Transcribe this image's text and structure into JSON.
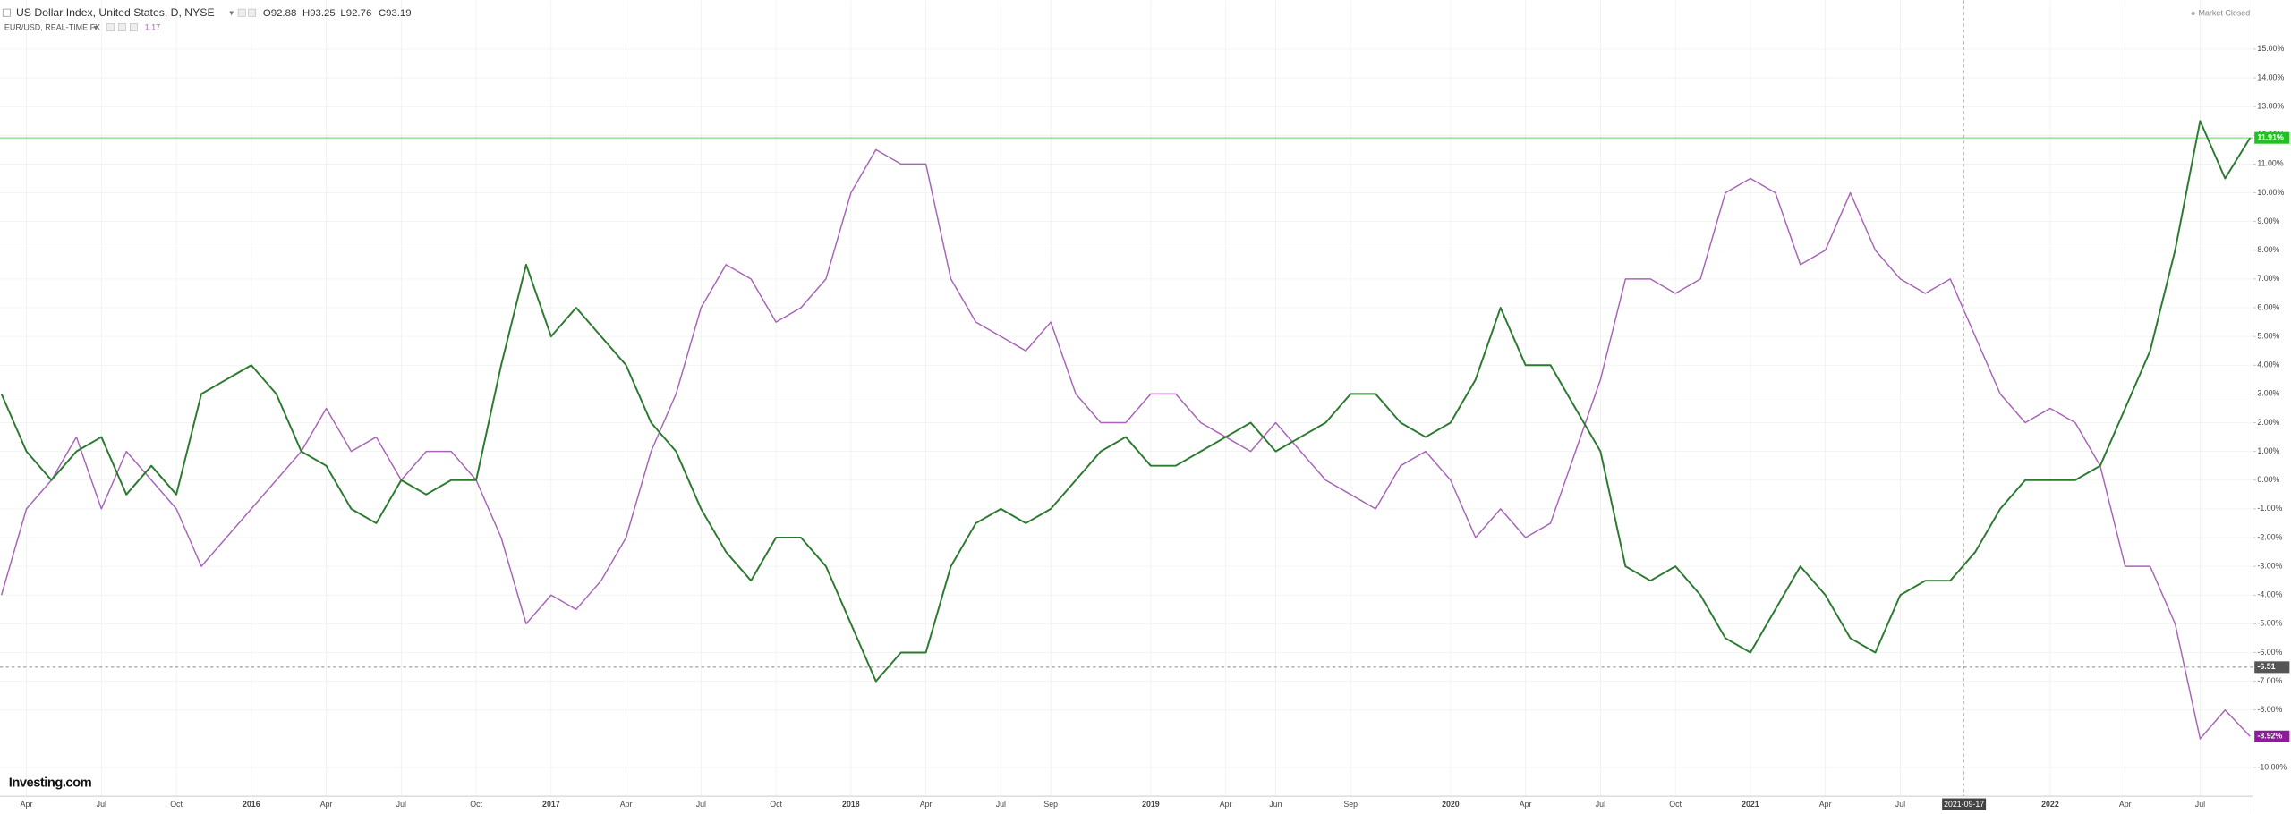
{
  "header": {
    "ohlc": [
      "O92.88",
      "H93.25",
      "L92.76",
      "C93.19"
    ],
    "second_value": "1.17",
    "status": "Market Closed",
    "logo": "Investing.com"
  },
  "chart_data": {
    "type": "line",
    "categories": [
      null,
      "Apr",
      null,
      null,
      "Jul",
      null,
      null,
      "Oct",
      null,
      null,
      "2016",
      null,
      null,
      "Apr",
      null,
      null,
      "Jul",
      null,
      null,
      "Oct",
      null,
      null,
      "2017",
      null,
      null,
      "Apr",
      null,
      null,
      "Jul",
      null,
      null,
      "Oct",
      null,
      null,
      "2018",
      null,
      null,
      "Apr",
      null,
      null,
      "Jul",
      null,
      "Sep",
      null,
      null,
      null,
      "2019",
      null,
      null,
      "Apr",
      null,
      "Jun",
      null,
      null,
      "Sep",
      null,
      null,
      null,
      "2020",
      null,
      null,
      "Apr",
      null,
      null,
      "Jul",
      null,
      null,
      "Oct",
      null,
      null,
      "2021",
      null,
      null,
      "Apr",
      null,
      null,
      "Jul",
      null,
      null,
      null,
      null,
      null,
      "2022",
      null,
      null,
      "Apr",
      null,
      null,
      "Jul",
      null,
      null
    ],
    "series": [
      {
        "name": "US Dollar Index, United States, D, NYSE",
        "color": "#2b7a2f",
        "values": [
          3,
          1,
          0,
          1,
          1.5,
          -0.5,
          0.5,
          -0.5,
          3,
          3.5,
          4,
          3,
          1,
          0.5,
          -1,
          -1.5,
          0,
          -0.5,
          0,
          0,
          4,
          7.5,
          5,
          6,
          5,
          4,
          2,
          1,
          -1,
          -2.5,
          -3.5,
          -2,
          -2,
          -3,
          -5,
          -7,
          -6,
          -6,
          -3,
          -1.5,
          -1,
          -1.5,
          -1,
          0,
          1,
          1.5,
          0.5,
          0.5,
          1,
          1.5,
          2,
          1,
          1.5,
          2,
          3,
          3,
          2,
          1.5,
          2,
          3.5,
          6,
          4,
          4,
          2.5,
          1,
          -3,
          -3.5,
          -3,
          -4,
          -5.5,
          -6,
          -4.5,
          -3,
          -4,
          -5.5,
          -6,
          -4,
          -3.5,
          -3.5,
          -2.5,
          -1,
          0,
          0,
          0,
          0.5,
          2.5,
          4.5,
          8,
          12.5,
          10.5,
          11.91
        ]
      },
      {
        "name": "EUR/USD, REAL-TIME FX",
        "color": "#a764b8",
        "values": [
          -4,
          -1,
          0,
          1.5,
          -1,
          1,
          0,
          -1,
          -3,
          -2,
          -1,
          0,
          1,
          2.5,
          1,
          1.5,
          0,
          1,
          1,
          0,
          -2,
          -5,
          -4,
          -4.5,
          -3.5,
          -2,
          1,
          3,
          6,
          7.5,
          7,
          5.5,
          6,
          7,
          10,
          11.5,
          11,
          11,
          7,
          5.5,
          5,
          4.5,
          5.5,
          3,
          2,
          2,
          3,
          3,
          2,
          1.5,
          1,
          2,
          1,
          0,
          -0.5,
          -1,
          0.5,
          1,
          0,
          -2,
          -1,
          -2,
          -1.5,
          1,
          3.5,
          7,
          7,
          6.5,
          7,
          10,
          10.5,
          10,
          7.5,
          8,
          10,
          8,
          7,
          6.5,
          7,
          5,
          3,
          2,
          2.5,
          2,
          0.5,
          -3,
          -3,
          -5,
          -9,
          -8,
          -8.92
        ]
      }
    ],
    "ylim": [
      -11,
      16.7
    ],
    "yticks": [
      {
        "value": 15,
        "label": "15.00%"
      },
      {
        "value": 14,
        "label": "14.00%"
      },
      {
        "value": 13,
        "label": "13.00%"
      },
      {
        "value": 12,
        "label": "12.00%"
      },
      {
        "value": 11,
        "label": "11.00%"
      },
      {
        "value": 10,
        "label": "10.00%"
      },
      {
        "value": 9,
        "label": "9.00%"
      },
      {
        "value": 8,
        "label": "8.00%"
      },
      {
        "value": 7,
        "label": "7.00%"
      },
      {
        "value": 6,
        "label": "6.00%"
      },
      {
        "value": 5,
        "label": "5.00%"
      },
      {
        "value": 4,
        "label": "4.00%"
      },
      {
        "value": 3,
        "label": "3.00%"
      },
      {
        "value": 2,
        "label": "2.00%"
      },
      {
        "value": 1,
        "label": "1.00%"
      },
      {
        "value": 0,
        "label": "0.00%"
      },
      {
        "value": -1,
        "label": "-1.00%"
      },
      {
        "value": -2,
        "label": "-2.00%"
      },
      {
        "value": -3,
        "label": "-3.00%"
      },
      {
        "value": -4,
        "label": "-4.00%"
      },
      {
        "value": -5,
        "label": "-5.00%"
      },
      {
        "value": -6,
        "label": "-6.00%"
      },
      {
        "value": -7,
        "label": "-7.00%"
      },
      {
        "value": -8,
        "label": "-8.00%"
      },
      {
        "value": -10,
        "label": "-10.00%"
      }
    ],
    "grid": true,
    "markers": [
      {
        "value": 11.91,
        "label": "11.91%",
        "color": "#22c122",
        "style": "solid"
      },
      {
        "value": -6.51,
        "label": "-6.51",
        "color": "#555555",
        "style": "dashed"
      },
      {
        "value": -8.92,
        "label": "-8.92%",
        "color": "#8e1b9a",
        "style": "none"
      }
    ],
    "crosshair_label": "2021-09-17"
  }
}
